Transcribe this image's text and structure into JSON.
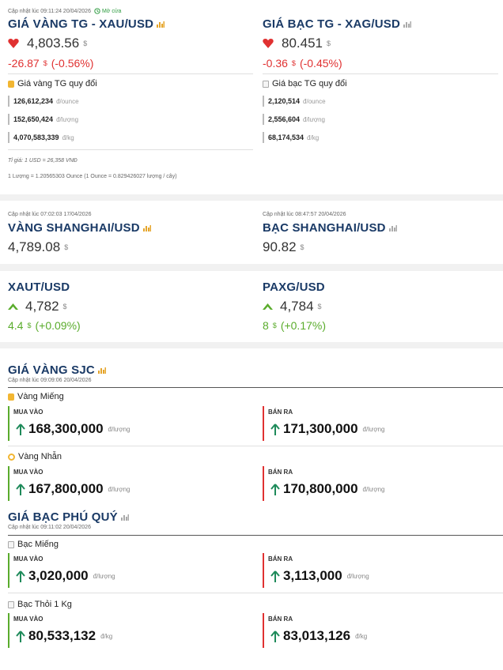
{
  "world": {
    "updated": "Cập nhật lúc 09:11:24 20/04/2026",
    "market_status": "Mở cửa",
    "gold": {
      "title": "GIÁ VÀNG TG - XAU/USD",
      "price": "4,803.56",
      "currency": "$",
      "change": "-26.87",
      "change_pct": "(-0.56%)",
      "conv_title": "Giá vàng TG quy đổi",
      "conv": [
        {
          "value": "126,612,234",
          "unit": "đ/ounce"
        },
        {
          "value": "152,650,424",
          "unit": "đ/lượng"
        },
        {
          "value": "4,070,583,339",
          "unit": "đ/kg"
        }
      ]
    },
    "silver": {
      "title": "GIÁ BẠC TG - XAG/USD",
      "price": "80.451",
      "currency": "$",
      "change": "-0.36",
      "change_pct": "(-0.45%)",
      "conv_title": "Giá bạc TG quy đổi",
      "conv": [
        {
          "value": "2,120,514",
          "unit": "đ/ounce"
        },
        {
          "value": "2,556,604",
          "unit": "đ/lượng"
        },
        {
          "value": "68,174,534",
          "unit": "đ/kg"
        }
      ]
    },
    "rate_note": "Tỉ giá: 1 USD = 26,358 VNĐ",
    "luong_note": "1 Lượng = 1.20565303 Ounce (1 Ounce = 0.829426027 lượng / cây)"
  },
  "shanghai": {
    "gold": {
      "updated": "Cập nhật lúc 07:02:03 17/04/2026",
      "title": "VÀNG SHANGHAI/USD",
      "price": "4,789.08",
      "currency": "$"
    },
    "silver": {
      "updated": "Cập nhật lúc 08:47:57 20/04/2026",
      "title": "BẠC SHANGHAI/USD",
      "price": "90.82",
      "currency": "$"
    }
  },
  "tokens": {
    "xaut": {
      "title": "XAUT/USD",
      "price": "4,782",
      "currency": "$",
      "change": "4.4",
      "change_pct": "(+0.09%)"
    },
    "paxg": {
      "title": "PAXG/USD",
      "price": "4,784",
      "currency": "$",
      "change": "8",
      "change_pct": "(+0.17%)"
    }
  },
  "sjc": {
    "title": "GIÁ VÀNG SJC",
    "updated": "Cập nhật lúc 09:09:06 20/04/2026",
    "groups": [
      {
        "name": "Vàng Miếng",
        "buy_label": "MUA VÀO",
        "buy": "168,300,000",
        "sell_label": "BÁN RA",
        "sell": "171,300,000",
        "unit": "đ/lượng"
      },
      {
        "name": "Vàng Nhẫn",
        "buy_label": "MUA VÀO",
        "buy": "167,800,000",
        "sell_label": "BÁN RA",
        "sell": "170,800,000",
        "unit": "đ/lượng"
      }
    ]
  },
  "phuquy": {
    "title": "GIÁ BẠC PHÚ QUÝ",
    "updated": "Cập nhật lúc 09:11:02 20/04/2026",
    "groups": [
      {
        "name": "Bạc Miếng",
        "buy_label": "MUA VÀO",
        "buy": "3,020,000",
        "sell_label": "BÁN RA",
        "sell": "3,113,000",
        "unit": "đ/lượng"
      },
      {
        "name": "Bạc Thỏi 1 Kg",
        "buy_label": "MUA VÀO",
        "buy": "80,533,132",
        "sell_label": "BÁN RA",
        "sell": "83,013,126",
        "unit": "đ/kg"
      }
    ]
  },
  "colors": {
    "up": "#5aac2c",
    "down": "#e03131",
    "title": "#1a3a66",
    "gold_icon": "#f2b632"
  },
  "icons": {
    "down": "heart-down-icon",
    "up": "chevron-up-icon",
    "arrow_up": "arrow-up-icon",
    "chart": "bar-chart-icon",
    "clock": "clock-icon"
  }
}
